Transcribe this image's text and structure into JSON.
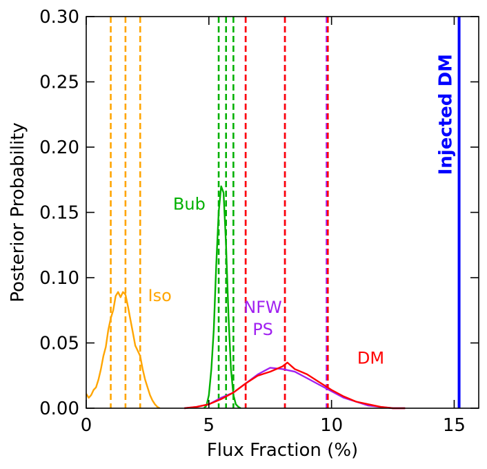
{
  "chart_data": {
    "type": "line",
    "title": "",
    "xlabel": "Flux Fraction (%)",
    "ylabel": "Posterior Probability",
    "xlim": [
      0,
      16
    ],
    "ylim": [
      0,
      0.3
    ],
    "xticks": [
      0,
      5,
      10,
      15
    ],
    "xtick_labels": [
      "0",
      "5",
      "10",
      "15"
    ],
    "yticks": [
      0.0,
      0.05,
      0.1,
      0.15,
      0.2,
      0.25,
      0.3
    ],
    "ytick_labels": [
      "0.00",
      "0.05",
      "0.10",
      "0.15",
      "0.20",
      "0.25",
      "0.30"
    ],
    "grid": false,
    "colors": {
      "iso": "#ffa500",
      "bub": "#00b000",
      "nfw_ps": "#a020f0",
      "dm": "#ff0000",
      "injected": "#0000ff"
    },
    "series": [
      {
        "name": "Iso",
        "color_key": "iso",
        "x": [
          0.0,
          0.1,
          0.2,
          0.3,
          0.4,
          0.5,
          0.6,
          0.7,
          0.8,
          0.9,
          1.0,
          1.1,
          1.2,
          1.3,
          1.4,
          1.5,
          1.6,
          1.7,
          1.8,
          1.9,
          2.0,
          2.1,
          2.2,
          2.3,
          2.4,
          2.5,
          2.6,
          2.7,
          2.8,
          2.9,
          3.0
        ],
        "y": [
          0.011,
          0.008,
          0.01,
          0.014,
          0.016,
          0.022,
          0.03,
          0.04,
          0.047,
          0.06,
          0.069,
          0.075,
          0.086,
          0.089,
          0.085,
          0.089,
          0.087,
          0.078,
          0.068,
          0.058,
          0.048,
          0.044,
          0.04,
          0.03,
          0.022,
          0.016,
          0.01,
          0.006,
          0.003,
          0.001,
          0.0
        ]
      },
      {
        "name": "Bub",
        "color_key": "bub",
        "x": [
          4.8,
          4.9,
          5.0,
          5.1,
          5.2,
          5.3,
          5.4,
          5.5,
          5.6,
          5.7,
          5.8,
          5.9,
          6.0,
          6.1,
          6.2,
          6.3
        ],
        "y": [
          0.0,
          0.002,
          0.01,
          0.03,
          0.06,
          0.11,
          0.15,
          0.17,
          0.165,
          0.125,
          0.07,
          0.03,
          0.01,
          0.003,
          0.001,
          0.0
        ]
      },
      {
        "name": "NFW PS",
        "color_key": "nfw_ps",
        "x": [
          4.0,
          4.5,
          5.0,
          5.5,
          6.0,
          6.5,
          7.0,
          7.5,
          8.0,
          8.5,
          9.0,
          9.5,
          10.0,
          10.5,
          11.0,
          11.5,
          12.0,
          12.5,
          13.0
        ],
        "y": [
          0.0,
          0.001,
          0.003,
          0.008,
          0.012,
          0.019,
          0.026,
          0.031,
          0.03,
          0.028,
          0.023,
          0.018,
          0.013,
          0.008,
          0.005,
          0.002,
          0.001,
          0.0,
          0.0
        ]
      },
      {
        "name": "DM",
        "color_key": "dm",
        "x": [
          4.0,
          4.5,
          5.0,
          5.5,
          6.0,
          6.5,
          7.0,
          7.5,
          8.0,
          8.2,
          8.5,
          9.0,
          9.5,
          10.0,
          10.5,
          11.0,
          11.5,
          12.0,
          12.5,
          13.0
        ],
        "y": [
          0.0,
          0.001,
          0.003,
          0.007,
          0.012,
          0.019,
          0.025,
          0.028,
          0.032,
          0.035,
          0.03,
          0.026,
          0.02,
          0.014,
          0.009,
          0.005,
          0.003,
          0.001,
          0.0,
          0.0
        ]
      }
    ],
    "vlines": [
      {
        "series": "Iso",
        "x": 1.0,
        "style": "dashed"
      },
      {
        "series": "Iso",
        "x": 1.6,
        "style": "dashed"
      },
      {
        "series": "Iso",
        "x": 2.2,
        "style": "dashed"
      },
      {
        "series": "Bub",
        "x": 5.4,
        "style": "dashed"
      },
      {
        "series": "Bub",
        "x": 5.7,
        "style": "dashed"
      },
      {
        "series": "Bub",
        "x": 6.0,
        "style": "dashed"
      },
      {
        "series": "NFW PS",
        "x": 6.5,
        "style": "dashed"
      },
      {
        "series": "NFW PS",
        "x": 8.1,
        "style": "dashed"
      },
      {
        "series": "NFW PS",
        "x": 9.8,
        "style": "dashed"
      },
      {
        "series": "DM",
        "x": 6.5,
        "style": "dashed"
      },
      {
        "series": "DM",
        "x": 8.1,
        "style": "dashed"
      },
      {
        "series": "DM",
        "x": 9.85,
        "style": "dashed"
      }
    ],
    "injected_line": {
      "label": "Injected DM",
      "x": 15.2
    },
    "annotations": [
      {
        "text": "Bub",
        "x": 4.2,
        "y": 0.152,
        "color_key": "bub"
      },
      {
        "text": "Iso",
        "x": 3.0,
        "y": 0.082,
        "color_key": "iso"
      },
      {
        "text": "NFW",
        "x": 7.2,
        "y": 0.073,
        "color_key": "nfw_ps"
      },
      {
        "text": "PS",
        "x": 7.2,
        "y": 0.056,
        "color_key": "nfw_ps"
      },
      {
        "text": "DM",
        "x": 11.6,
        "y": 0.034,
        "color_key": "dm"
      }
    ]
  }
}
